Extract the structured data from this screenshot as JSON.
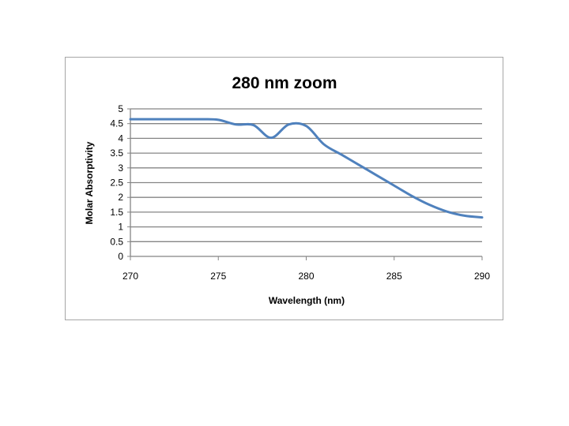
{
  "chart_data": {
    "type": "line",
    "title": "280 nm zoom",
    "xlabel": "Wavelength (nm)",
    "ylabel": "Molar Absorptivity",
    "xlim": [
      270,
      290
    ],
    "ylim": [
      0,
      5
    ],
    "xticks": [
      270,
      275,
      280,
      285,
      290
    ],
    "yticks": [
      0,
      0.5,
      1,
      1.5,
      2,
      2.5,
      3,
      3.5,
      4,
      4.5,
      5
    ],
    "grid": "horizontal",
    "legend": "none",
    "series": [
      {
        "color": "#4f81bd",
        "x": [
          270,
          272,
          274,
          275,
          276,
          277,
          278,
          279,
          280,
          281,
          282,
          283,
          284,
          285,
          286,
          287,
          288,
          289,
          290
        ],
        "y": [
          4.65,
          4.65,
          4.65,
          4.63,
          4.47,
          4.45,
          4.02,
          4.47,
          4.42,
          3.8,
          3.45,
          3.1,
          2.75,
          2.4,
          2.05,
          1.75,
          1.52,
          1.38,
          1.32
        ]
      }
    ]
  }
}
